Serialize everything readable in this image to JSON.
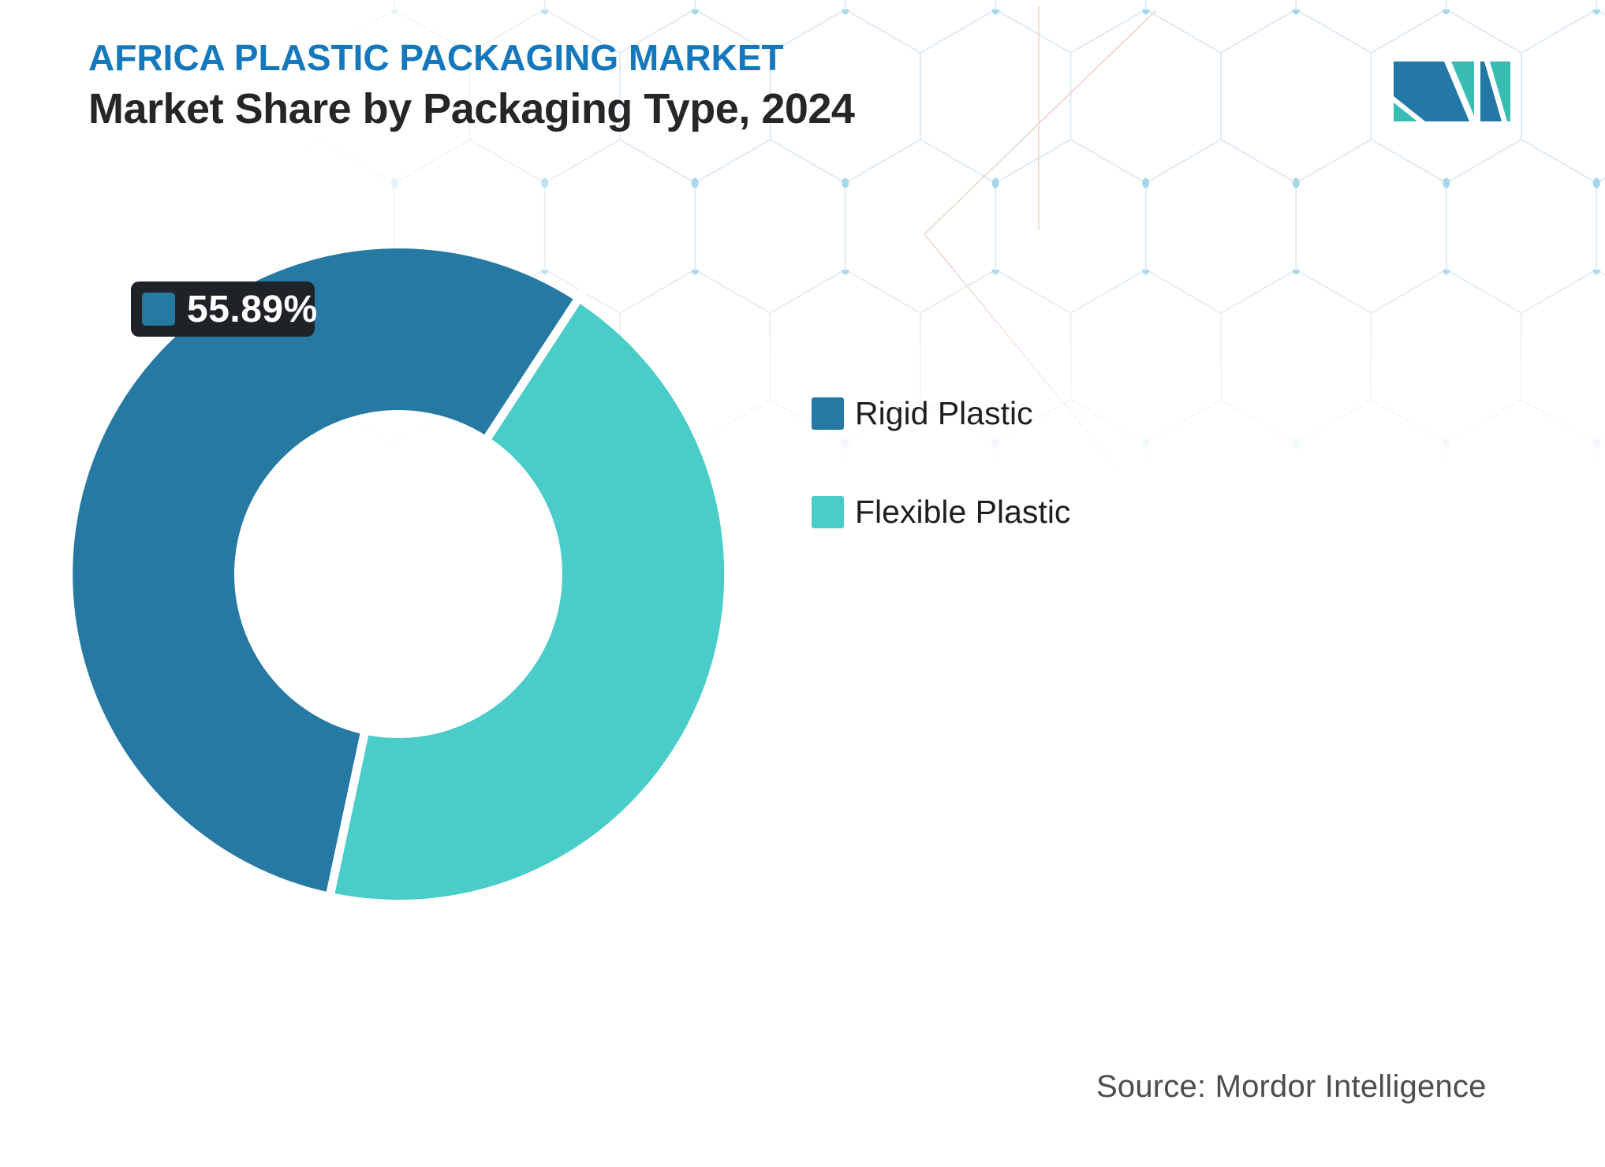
{
  "header": {
    "eyebrow": "AFRICA PLASTIC PACKAGING MARKET",
    "title": "Market Share by Packaging Type, 2024"
  },
  "chart_data": {
    "type": "pie",
    "subtype": "donut",
    "title": "Market Share by Packaging Type, 2024",
    "categories": [
      "Rigid Plastic",
      "Flexible Plastic"
    ],
    "values": [
      55.89,
      44.11
    ],
    "unit": "%",
    "colors": [
      "#2679A2",
      "#4ACCC8"
    ],
    "legend_position": "right",
    "start_angle_deg": 192,
    "hole_ratio": 0.5,
    "data_label": {
      "text": "55.89%",
      "category": "Rigid Plastic"
    }
  },
  "legend": {
    "items": [
      {
        "label": "Rigid Plastic",
        "color": "#2679A2"
      },
      {
        "label": "Flexible Plastic",
        "color": "#4ACCC8"
      }
    ]
  },
  "footer": {
    "source": "Source: Mordor Intelligence"
  },
  "colors": {
    "title_blue": "#1578BD",
    "heading_dark": "#262626",
    "legend_text": "#1F1F1F",
    "source_gray": "#4D4D4D",
    "data_label_bg": "#1F2328",
    "logo_blue": "#2478A6",
    "logo_teal": "#38BDB3",
    "deco_line": "#DFEBF4",
    "deco_dot": "#A6D7EA",
    "deco_accent": "#F2CDBF"
  }
}
